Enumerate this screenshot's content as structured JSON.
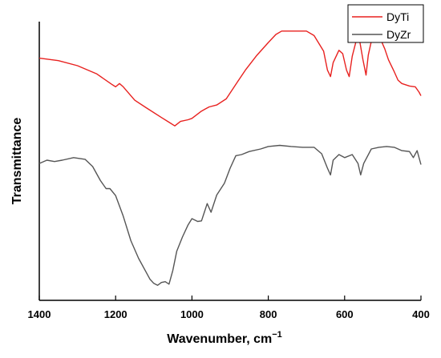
{
  "chart_data": {
    "type": "line",
    "xlabel": "Wavenumber, cm",
    "xlabel_superscript": "−1",
    "ylabel": "Transmittance",
    "xlim": [
      1400,
      400
    ],
    "x_reversed": true,
    "x_ticks": [
      1400,
      1200,
      1000,
      800,
      600,
      400
    ],
    "y_ticks_labeled": false,
    "grid": false,
    "legend_position": "top-right",
    "ylim": [
      0,
      100
    ],
    "series": [
      {
        "name": "DyTi",
        "color": "#e8211f",
        "points": [
          [
            1400,
            86.9
          ],
          [
            1350,
            86.0
          ],
          [
            1300,
            84.2
          ],
          [
            1250,
            81.3
          ],
          [
            1210,
            77.5
          ],
          [
            1200,
            76.6
          ],
          [
            1190,
            77.8
          ],
          [
            1180,
            76.6
          ],
          [
            1165,
            74.2
          ],
          [
            1150,
            71.8
          ],
          [
            1120,
            69.1
          ],
          [
            1080,
            65.6
          ],
          [
            1060,
            63.9
          ],
          [
            1045,
            62.6
          ],
          [
            1030,
            64.2
          ],
          [
            1010,
            64.8
          ],
          [
            1000,
            65.3
          ],
          [
            975,
            67.9
          ],
          [
            955,
            69.4
          ],
          [
            935,
            70.1
          ],
          [
            910,
            72.3
          ],
          [
            880,
            78.5
          ],
          [
            860,
            82.6
          ],
          [
            830,
            87.9
          ],
          [
            800,
            92.5
          ],
          [
            780,
            95.4
          ],
          [
            765,
            96.6
          ],
          [
            740,
            96.6
          ],
          [
            700,
            96.6
          ],
          [
            680,
            95.0
          ],
          [
            655,
            89.4
          ],
          [
            645,
            82.6
          ],
          [
            637,
            80.3
          ],
          [
            630,
            85.3
          ],
          [
            615,
            89.7
          ],
          [
            605,
            88.5
          ],
          [
            595,
            82.6
          ],
          [
            588,
            80.3
          ],
          [
            580,
            87.6
          ],
          [
            570,
            93.0
          ],
          [
            560,
            92.7
          ],
          [
            552,
            86.4
          ],
          [
            544,
            80.8
          ],
          [
            538,
            88.0
          ],
          [
            525,
            96.1
          ],
          [
            510,
            95.0
          ],
          [
            495,
            90.3
          ],
          [
            485,
            86.3
          ],
          [
            470,
            82.0
          ],
          [
            460,
            79.0
          ],
          [
            450,
            77.8
          ],
          [
            430,
            76.9
          ],
          [
            415,
            76.6
          ],
          [
            405,
            74.7
          ],
          [
            400,
            73.4
          ]
        ]
      },
      {
        "name": "DyZr",
        "color": "#555555",
        "points": [
          [
            1400,
            49.1
          ],
          [
            1380,
            50.3
          ],
          [
            1360,
            49.8
          ],
          [
            1340,
            50.3
          ],
          [
            1310,
            51.2
          ],
          [
            1280,
            50.6
          ],
          [
            1260,
            48.0
          ],
          [
            1240,
            43.0
          ],
          [
            1225,
            40.1
          ],
          [
            1215,
            40.1
          ],
          [
            1200,
            37.6
          ],
          [
            1180,
            30.2
          ],
          [
            1160,
            21.4
          ],
          [
            1140,
            15.1
          ],
          [
            1120,
            10.1
          ],
          [
            1110,
            7.6
          ],
          [
            1100,
            6.1
          ],
          [
            1090,
            5.4
          ],
          [
            1080,
            6.4
          ],
          [
            1070,
            6.7
          ],
          [
            1060,
            5.8
          ],
          [
            1050,
            10.8
          ],
          [
            1040,
            17.6
          ],
          [
            1025,
            22.7
          ],
          [
            1010,
            27.1
          ],
          [
            1000,
            29.3
          ],
          [
            985,
            28.3
          ],
          [
            975,
            28.5
          ],
          [
            960,
            34.7
          ],
          [
            950,
            31.6
          ],
          [
            935,
            37.8
          ],
          [
            915,
            42.0
          ],
          [
            900,
            47.4
          ],
          [
            885,
            51.9
          ],
          [
            870,
            52.3
          ],
          [
            850,
            53.4
          ],
          [
            820,
            54.3
          ],
          [
            800,
            55.2
          ],
          [
            770,
            55.6
          ],
          [
            740,
            55.2
          ],
          [
            710,
            54.9
          ],
          [
            680,
            54.9
          ],
          [
            660,
            52.6
          ],
          [
            645,
            47.4
          ],
          [
            637,
            45.0
          ],
          [
            630,
            50.3
          ],
          [
            615,
            52.3
          ],
          [
            600,
            51.2
          ],
          [
            580,
            52.3
          ],
          [
            565,
            49.1
          ],
          [
            558,
            45.0
          ],
          [
            550,
            49.1
          ],
          [
            530,
            54.3
          ],
          [
            510,
            54.9
          ],
          [
            490,
            55.2
          ],
          [
            470,
            54.9
          ],
          [
            450,
            53.7
          ],
          [
            430,
            53.4
          ],
          [
            420,
            51.2
          ],
          [
            410,
            53.7
          ],
          [
            400,
            48.7
          ]
        ]
      }
    ]
  }
}
